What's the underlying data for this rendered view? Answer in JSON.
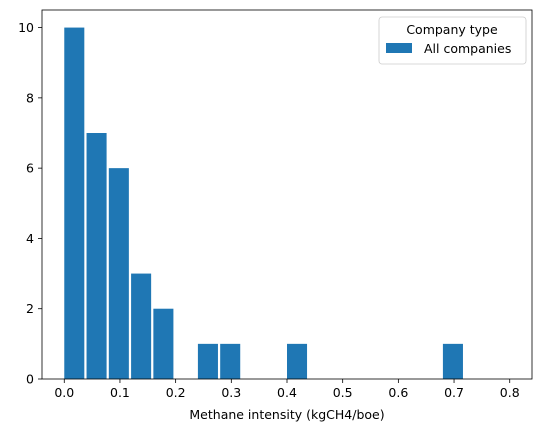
{
  "chart_data": {
    "type": "bar",
    "xlabel": "Methane intensity (kgCH4/boe)",
    "ylabel": "",
    "xlim": [
      -0.04,
      0.84
    ],
    "ylim": [
      0,
      10.5
    ],
    "xticks": [
      0.0,
      0.1,
      0.2,
      0.3,
      0.4,
      0.5,
      0.6,
      0.7,
      0.8
    ],
    "xtick_labels": [
      "0.0",
      "0.1",
      "0.2",
      "0.3",
      "0.4",
      "0.5",
      "0.6",
      "0.7",
      "0.8"
    ],
    "yticks": [
      0,
      2,
      4,
      6,
      8,
      10
    ],
    "ytick_labels": [
      "0",
      "2",
      "4",
      "6",
      "8",
      "10"
    ],
    "bin_width": 0.04,
    "bars": [
      {
        "x": 0.0,
        "value": 10
      },
      {
        "x": 0.04,
        "value": 7
      },
      {
        "x": 0.08,
        "value": 6
      },
      {
        "x": 0.12,
        "value": 3
      },
      {
        "x": 0.16,
        "value": 2
      },
      {
        "x": 0.24,
        "value": 1
      },
      {
        "x": 0.28,
        "value": 1
      },
      {
        "x": 0.4,
        "value": 1
      },
      {
        "x": 0.68,
        "value": 1
      }
    ],
    "series": [
      {
        "name": "All companies",
        "color": "#1f77b4"
      }
    ],
    "legend": {
      "title": "Company type",
      "position": "top-right"
    },
    "grid": false
  }
}
